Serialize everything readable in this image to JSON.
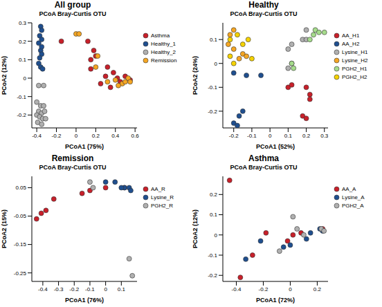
{
  "chart_data": [
    {
      "type": "scatter",
      "title": "All group",
      "subtitle": "PCoA Bray-Curtis OTU",
      "x_label": "PCoA1 (75%)",
      "y_label": "PCoA2 (12%)",
      "legend": "right",
      "xlim": [
        -0.45,
        0.62
      ],
      "xticks": [
        -0.4,
        -0.2,
        0,
        0.2,
        0.4,
        0.6
      ],
      "ylim": [
        -0.27,
        0.3
      ],
      "yticks": [
        -0.2,
        -0.1,
        0,
        0.1,
        0.2,
        0.3
      ],
      "series": [
        {
          "name": "Asthma",
          "color": "#c8202a",
          "x": [
            -0.15,
            0.12,
            0.18,
            0.2,
            0.15,
            0.32,
            0.3,
            0.38,
            0.42,
            0.45,
            0.25,
            0.5,
            0.55,
            0.15,
            0.35
          ],
          "y": [
            0.2,
            0.2,
            0.15,
            0.12,
            0.1,
            0.06,
            0.01,
            0.03,
            0.0,
            -0.02,
            -0.03,
            0.01,
            -0.01,
            0.05,
            -0.05
          ]
        },
        {
          "name": "Healthy_1",
          "color": "#1f4f8f",
          "x": [
            -0.36,
            -0.35,
            -0.37,
            -0.35,
            -0.38,
            -0.36,
            -0.35,
            -0.37,
            -0.38,
            -0.36,
            -0.34,
            -0.35
          ],
          "y": [
            0.28,
            0.26,
            0.23,
            0.21,
            0.19,
            0.15,
            0.13,
            0.11,
            0.08,
            0.06,
            0.05,
            0.17
          ]
        },
        {
          "name": "Healthy_2",
          "color": "#b0b0b0",
          "x": [
            -0.38,
            -0.33,
            -0.4,
            -0.36,
            -0.33,
            -0.38,
            -0.35,
            -0.32,
            -0.4,
            -0.37,
            -0.34,
            -0.39,
            -0.35,
            -0.31
          ],
          "y": [
            -0.04,
            -0.04,
            -0.13,
            -0.15,
            -0.15,
            -0.18,
            -0.19,
            -0.18,
            -0.2,
            -0.21,
            -0.22,
            -0.24,
            -0.25,
            -0.22
          ]
        },
        {
          "name": "Remission",
          "color": "#f5a623",
          "x": [
            0.0,
            0.03,
            0.22,
            0.2,
            0.4,
            0.47,
            0.5,
            0.53,
            0.55,
            0.43,
            0.32
          ],
          "y": [
            0.24,
            0.24,
            0.12,
            0.06,
            -0.01,
            -0.03,
            -0.02,
            0.0,
            -0.02,
            -0.04,
            -0.02
          ]
        }
      ]
    },
    {
      "type": "scatter",
      "title": "Healthy",
      "subtitle": "PCoA Bray-Curtis OTU",
      "x_label": "PCoA1 (52%)",
      "y_label": "PCoA2 (24%)",
      "legend": "right",
      "xlim": [
        -0.26,
        0.32
      ],
      "xticks": [
        -0.2,
        -0.1,
        0,
        0.1,
        0.2,
        0.3
      ],
      "ylim": [
        -0.27,
        0.17
      ],
      "yticks": [
        -0.2,
        -0.1,
        0,
        0.1
      ],
      "series": [
        {
          "name": "AA_H1",
          "color": "#c8202a",
          "x": [
            0.2,
            0.22,
            0.1,
            0.12,
            0.18,
            0.2,
            0.22
          ],
          "y": [
            -0.1,
            -0.13,
            -0.1,
            -0.09,
            -0.22,
            -0.23,
            -0.15
          ]
        },
        {
          "name": "AA_H2",
          "color": "#1f4f8f",
          "x": [
            -0.2,
            -0.18,
            -0.17,
            -0.15,
            -0.13,
            -0.05,
            -0.2
          ],
          "y": [
            -0.25,
            -0.26,
            -0.22,
            -0.2,
            -0.05,
            -0.05,
            -0.04
          ]
        },
        {
          "name": "Lysine_H1",
          "color": "#b0b0b0",
          "x": [
            0.1,
            0.12,
            0.18,
            0.2,
            0.2,
            0.12,
            0.1
          ],
          "y": [
            0.06,
            0.08,
            0.1,
            0.14,
            0.1,
            0.0,
            -0.02
          ]
        },
        {
          "name": "Lysine_H2",
          "color": "#f5a623",
          "x": [
            -0.22,
            -0.2,
            -0.23,
            -0.2,
            -0.17,
            -0.15,
            -0.13
          ],
          "y": [
            0.12,
            0.14,
            0.08,
            0.06,
            0.02,
            0.04,
            0.03
          ]
        },
        {
          "name": "PGH2_H1",
          "color": "#a6dc8c",
          "x": [
            0.25,
            0.27,
            0.3,
            0.22,
            0.12,
            0.13,
            0.24
          ],
          "y": [
            0.14,
            0.13,
            0.13,
            0.1,
            0.0,
            -0.02,
            0.12
          ]
        },
        {
          "name": "PGH2_H2",
          "color": "#f5d200",
          "x": [
            -0.22,
            -0.2,
            -0.15,
            -0.1,
            -0.22,
            -0.18,
            -0.12
          ],
          "y": [
            0.03,
            0.0,
            0.08,
            0.02,
            0.1,
            0.12,
            0.1
          ]
        }
      ]
    },
    {
      "type": "scatter",
      "title": "Remission",
      "subtitle": "PCoA Bray-Curtis OTU",
      "x_label": "PCoA1 (76%)",
      "y_label": "PCoA2 (15%)",
      "legend": "right",
      "xlim": [
        -0.47,
        0.2
      ],
      "xticks": [
        -0.4,
        -0.3,
        -0.2,
        -0.1,
        0,
        0.1
      ],
      "ylim": [
        -0.28,
        0.09
      ],
      "yticks": [
        -0.25,
        -0.15,
        -0.05,
        0.05
      ],
      "series": [
        {
          "name": "AA_R",
          "color": "#c8202a",
          "x": [
            -0.44,
            -0.41,
            -0.38,
            -0.33,
            -0.15,
            -0.1,
            0.0,
            0.12
          ],
          "y": [
            -0.06,
            -0.04,
            -0.03,
            0.01,
            0.03,
            0.04,
            0.05,
            0.05
          ]
        },
        {
          "name": "Lysine_R",
          "color": "#1f4f8f",
          "x": [
            0.0,
            0.06,
            0.12,
            0.15,
            0.16,
            0.1
          ],
          "y": [
            0.07,
            0.07,
            0.05,
            0.05,
            0.04,
            0.05
          ]
        },
        {
          "name": "PGH2_R",
          "color": "#b0b0b0",
          "x": [
            -0.1,
            0.15,
            0.17,
            -0.08
          ],
          "y": [
            0.07,
            -0.2,
            -0.26,
            0.05
          ]
        }
      ]
    },
    {
      "type": "scatter",
      "title": "Asthma",
      "subtitle": "PCoA Bray-Curtis OTU",
      "x_label": "PCoA1 (72%)",
      "y_label": "PCoA2 (12%)",
      "legend": "right",
      "xlim": [
        -0.5,
        0.28
      ],
      "xticks": [
        -0.4,
        -0.2,
        0,
        0.2
      ],
      "ylim": [
        -0.23,
        0.29
      ],
      "yticks": [
        -0.2,
        -0.1,
        0,
        0.1,
        0.2
      ],
      "series": [
        {
          "name": "AA_A",
          "color": "#c8202a",
          "x": [
            -0.45,
            -0.37,
            -0.28,
            -0.18,
            -0.02,
            0.02,
            0.08,
            0.24
          ],
          "y": [
            0.27,
            -0.21,
            -0.1,
            0.01,
            -0.03,
            0.0,
            0.01,
            0.03
          ]
        },
        {
          "name": "Lysine_A",
          "color": "#1f4f8f",
          "x": [
            -0.33,
            -0.22,
            -0.05,
            0.0,
            0.12,
            0.15,
            0.22,
            0.24
          ],
          "y": [
            -0.12,
            -0.03,
            -0.06,
            -0.05,
            -0.02,
            0.01,
            0.03,
            0.02
          ]
        },
        {
          "name": "PGH2_A",
          "color": "#b0b0b0",
          "x": [
            -0.08,
            0.02,
            0.05,
            0.1,
            0.23,
            0.25
          ],
          "y": [
            -0.08,
            0.09,
            0.03,
            0.0,
            0.03,
            0.02
          ]
        }
      ]
    }
  ]
}
